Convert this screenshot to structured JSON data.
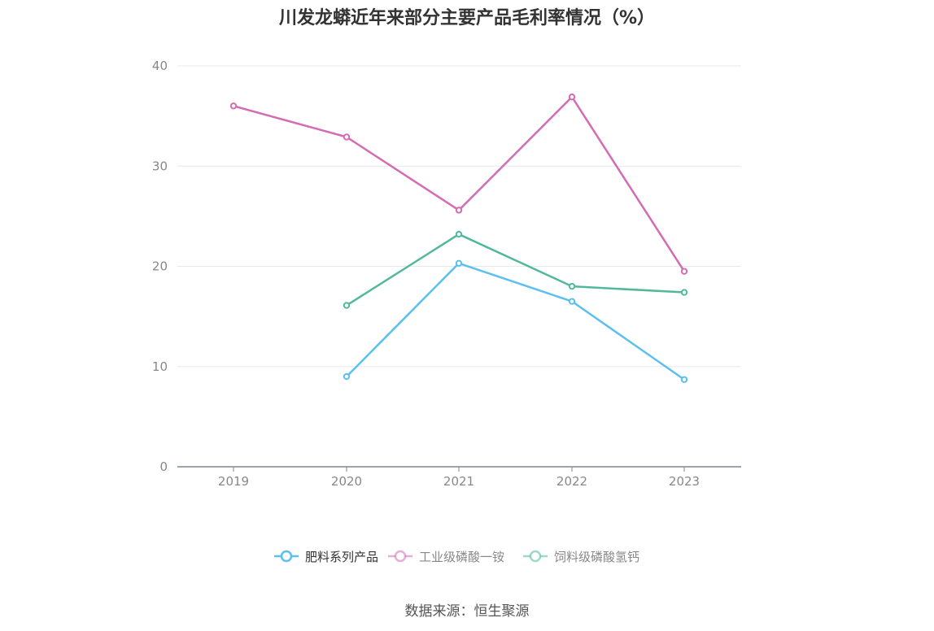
{
  "title": "川发龙蟒近年来部分主要产品毛利率情况（%）",
  "source": "数据来源：恒生聚源",
  "chart_data": {
    "type": "line",
    "title": "川发龙蟒近年来部分主要产品毛利率情况（%）",
    "categories": [
      "2019",
      "2020",
      "2021",
      "2022",
      "2023"
    ],
    "ylim": [
      0,
      40
    ],
    "yticks": [
      0,
      10,
      20,
      30,
      40
    ],
    "grid": true,
    "legend_position": "bottom-center",
    "series": [
      {
        "name": "肥料系列产品",
        "color": "#5bc0f0",
        "values": [
          null,
          9.0,
          20.3,
          16.5,
          8.7
        ]
      },
      {
        "name": "工业级磷酸一铵",
        "color": "#d46bb4",
        "values": [
          36.0,
          32.9,
          25.6,
          36.9,
          19.5
        ]
      },
      {
        "name": "饲料级磷酸氢钙",
        "color": "#52b89c",
        "values": [
          null,
          16.1,
          23.2,
          18.0,
          17.4
        ]
      }
    ]
  }
}
